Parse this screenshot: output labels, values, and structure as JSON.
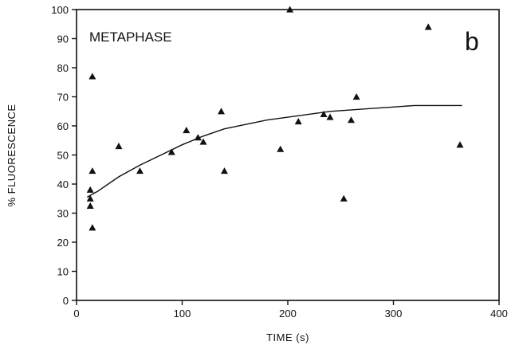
{
  "chart_data": {
    "type": "scatter",
    "xlabel": "TIME (s)",
    "ylabel": "% FLUORESCENCE",
    "annotation": "METAPHASE",
    "panel_label": "b",
    "xlim": [
      0,
      400
    ],
    "ylim": [
      0,
      100
    ],
    "xticks": [
      0,
      100,
      200,
      300,
      400
    ],
    "yticks": [
      0,
      10,
      20,
      30,
      40,
      50,
      60,
      70,
      80,
      90,
      100
    ],
    "grid": false,
    "legend": "none",
    "marker": "triangle",
    "points": [
      {
        "x": 13,
        "y": 38
      },
      {
        "x": 13,
        "y": 35
      },
      {
        "x": 13,
        "y": 32.5
      },
      {
        "x": 15,
        "y": 77
      },
      {
        "x": 15,
        "y": 44.5
      },
      {
        "x": 15,
        "y": 25
      },
      {
        "x": 40,
        "y": 53
      },
      {
        "x": 60,
        "y": 44.5
      },
      {
        "x": 90,
        "y": 51
      },
      {
        "x": 104,
        "y": 58.5
      },
      {
        "x": 115,
        "y": 56
      },
      {
        "x": 120,
        "y": 54.5
      },
      {
        "x": 137,
        "y": 65
      },
      {
        "x": 140,
        "y": 44.5
      },
      {
        "x": 193,
        "y": 52
      },
      {
        "x": 202,
        "y": 100
      },
      {
        "x": 210,
        "y": 61.5
      },
      {
        "x": 234,
        "y": 64
      },
      {
        "x": 240,
        "y": 63
      },
      {
        "x": 253,
        "y": 35
      },
      {
        "x": 260,
        "y": 62
      },
      {
        "x": 265,
        "y": 70
      },
      {
        "x": 333,
        "y": 94
      },
      {
        "x": 363,
        "y": 53.5
      }
    ],
    "fit_curve": [
      {
        "x": 10,
        "y": 35.5
      },
      {
        "x": 20,
        "y": 37.5
      },
      {
        "x": 40,
        "y": 42.5
      },
      {
        "x": 60,
        "y": 46.5
      },
      {
        "x": 80,
        "y": 50
      },
      {
        "x": 100,
        "y": 53.5
      },
      {
        "x": 120,
        "y": 56.5
      },
      {
        "x": 140,
        "y": 59
      },
      {
        "x": 160,
        "y": 60.5
      },
      {
        "x": 180,
        "y": 62
      },
      {
        "x": 200,
        "y": 63
      },
      {
        "x": 220,
        "y": 64
      },
      {
        "x": 240,
        "y": 65
      },
      {
        "x": 260,
        "y": 65.5
      },
      {
        "x": 280,
        "y": 66
      },
      {
        "x": 300,
        "y": 66.5
      },
      {
        "x": 320,
        "y": 67
      },
      {
        "x": 340,
        "y": 67
      },
      {
        "x": 365,
        "y": 67
      }
    ]
  }
}
